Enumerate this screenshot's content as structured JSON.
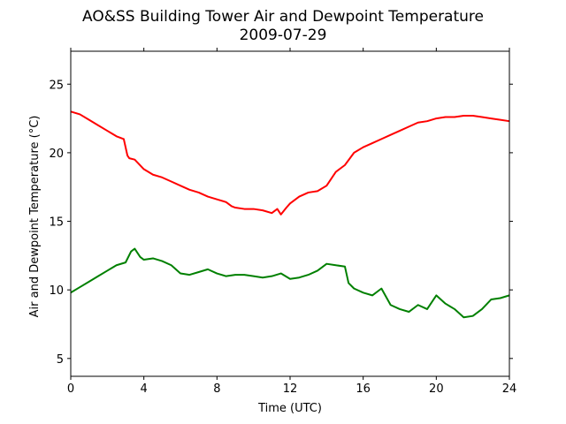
{
  "figure": {
    "title_line1": "AO&SS Building Tower Air and Dewpoint Temperature",
    "title_line2": "2009-07-29"
  },
  "chart_data": {
    "type": "line",
    "title": "AO&SS Building Tower Air and Dewpoint Temperature\n2009-07-29",
    "xlabel": "Time (UTC)",
    "ylabel": "Air and Dewpoint Temperature (°C)",
    "xlim": [
      0,
      24
    ],
    "ylim": [
      3.7,
      27.4
    ],
    "xticks": [
      0,
      4,
      8,
      12,
      16,
      20,
      24
    ],
    "yticks": [
      5,
      10,
      15,
      20,
      25
    ],
    "grid": false,
    "legend": "none",
    "series": [
      {
        "color": "#ff0000",
        "x": [
          0,
          0.5,
          1,
          1.5,
          2,
          2.5,
          2.9,
          3.1,
          3.2,
          3.5,
          4,
          4.5,
          5,
          5.5,
          6,
          6.5,
          7,
          7.5,
          8,
          8.5,
          8.8,
          9,
          9.5,
          10,
          10.5,
          11,
          11.3,
          11.5,
          11.8,
          12,
          12.5,
          13,
          13.5,
          14,
          14.5,
          15,
          15.5,
          16,
          16.5,
          17,
          17.5,
          18,
          18.5,
          19,
          19.5,
          20,
          20.5,
          21,
          21.5,
          22,
          22.5,
          23,
          23.5,
          24
        ],
        "values": [
          23.0,
          22.8,
          22.4,
          22.0,
          21.6,
          21.2,
          21.0,
          19.8,
          19.6,
          19.5,
          18.8,
          18.4,
          18.2,
          17.9,
          17.6,
          17.3,
          17.1,
          16.8,
          16.6,
          16.4,
          16.1,
          16.0,
          15.9,
          15.9,
          15.8,
          15.6,
          15.9,
          15.5,
          16.0,
          16.3,
          16.8,
          17.1,
          17.2,
          17.6,
          18.6,
          19.1,
          20.0,
          20.4,
          20.7,
          21.0,
          21.3,
          21.6,
          21.9,
          22.2,
          22.3,
          22.5,
          22.6,
          22.6,
          22.7,
          22.7,
          22.6,
          22.5,
          22.4,
          22.3
        ]
      },
      {
        "color": "#008000",
        "x": [
          0,
          0.5,
          1,
          1.5,
          2,
          2.5,
          3,
          3.3,
          3.5,
          3.8,
          4,
          4.5,
          5,
          5.5,
          6,
          6.5,
          7,
          7.5,
          8,
          8.5,
          9,
          9.5,
          10,
          10.5,
          11,
          11.5,
          12,
          12.5,
          13,
          13.5,
          14,
          14.5,
          15,
          15.2,
          15.5,
          16,
          16.5,
          17,
          17.5,
          18,
          18.5,
          19,
          19.5,
          20,
          20.5,
          21,
          21.5,
          22,
          22.5,
          23,
          23.5,
          24
        ],
        "values": [
          9.8,
          10.2,
          10.6,
          11.0,
          11.4,
          11.8,
          12.0,
          12.8,
          13.0,
          12.4,
          12.2,
          12.3,
          12.1,
          11.8,
          11.2,
          11.1,
          11.3,
          11.5,
          11.2,
          11.0,
          11.1,
          11.1,
          11.0,
          10.9,
          11.0,
          11.2,
          10.8,
          10.9,
          11.1,
          11.4,
          11.9,
          11.8,
          11.7,
          10.5,
          10.1,
          9.8,
          9.6,
          10.1,
          8.9,
          8.6,
          8.4,
          8.9,
          8.6,
          9.6,
          9.0,
          8.6,
          8.0,
          8.1,
          8.6,
          9.3,
          9.4,
          9.6
        ]
      }
    ]
  }
}
